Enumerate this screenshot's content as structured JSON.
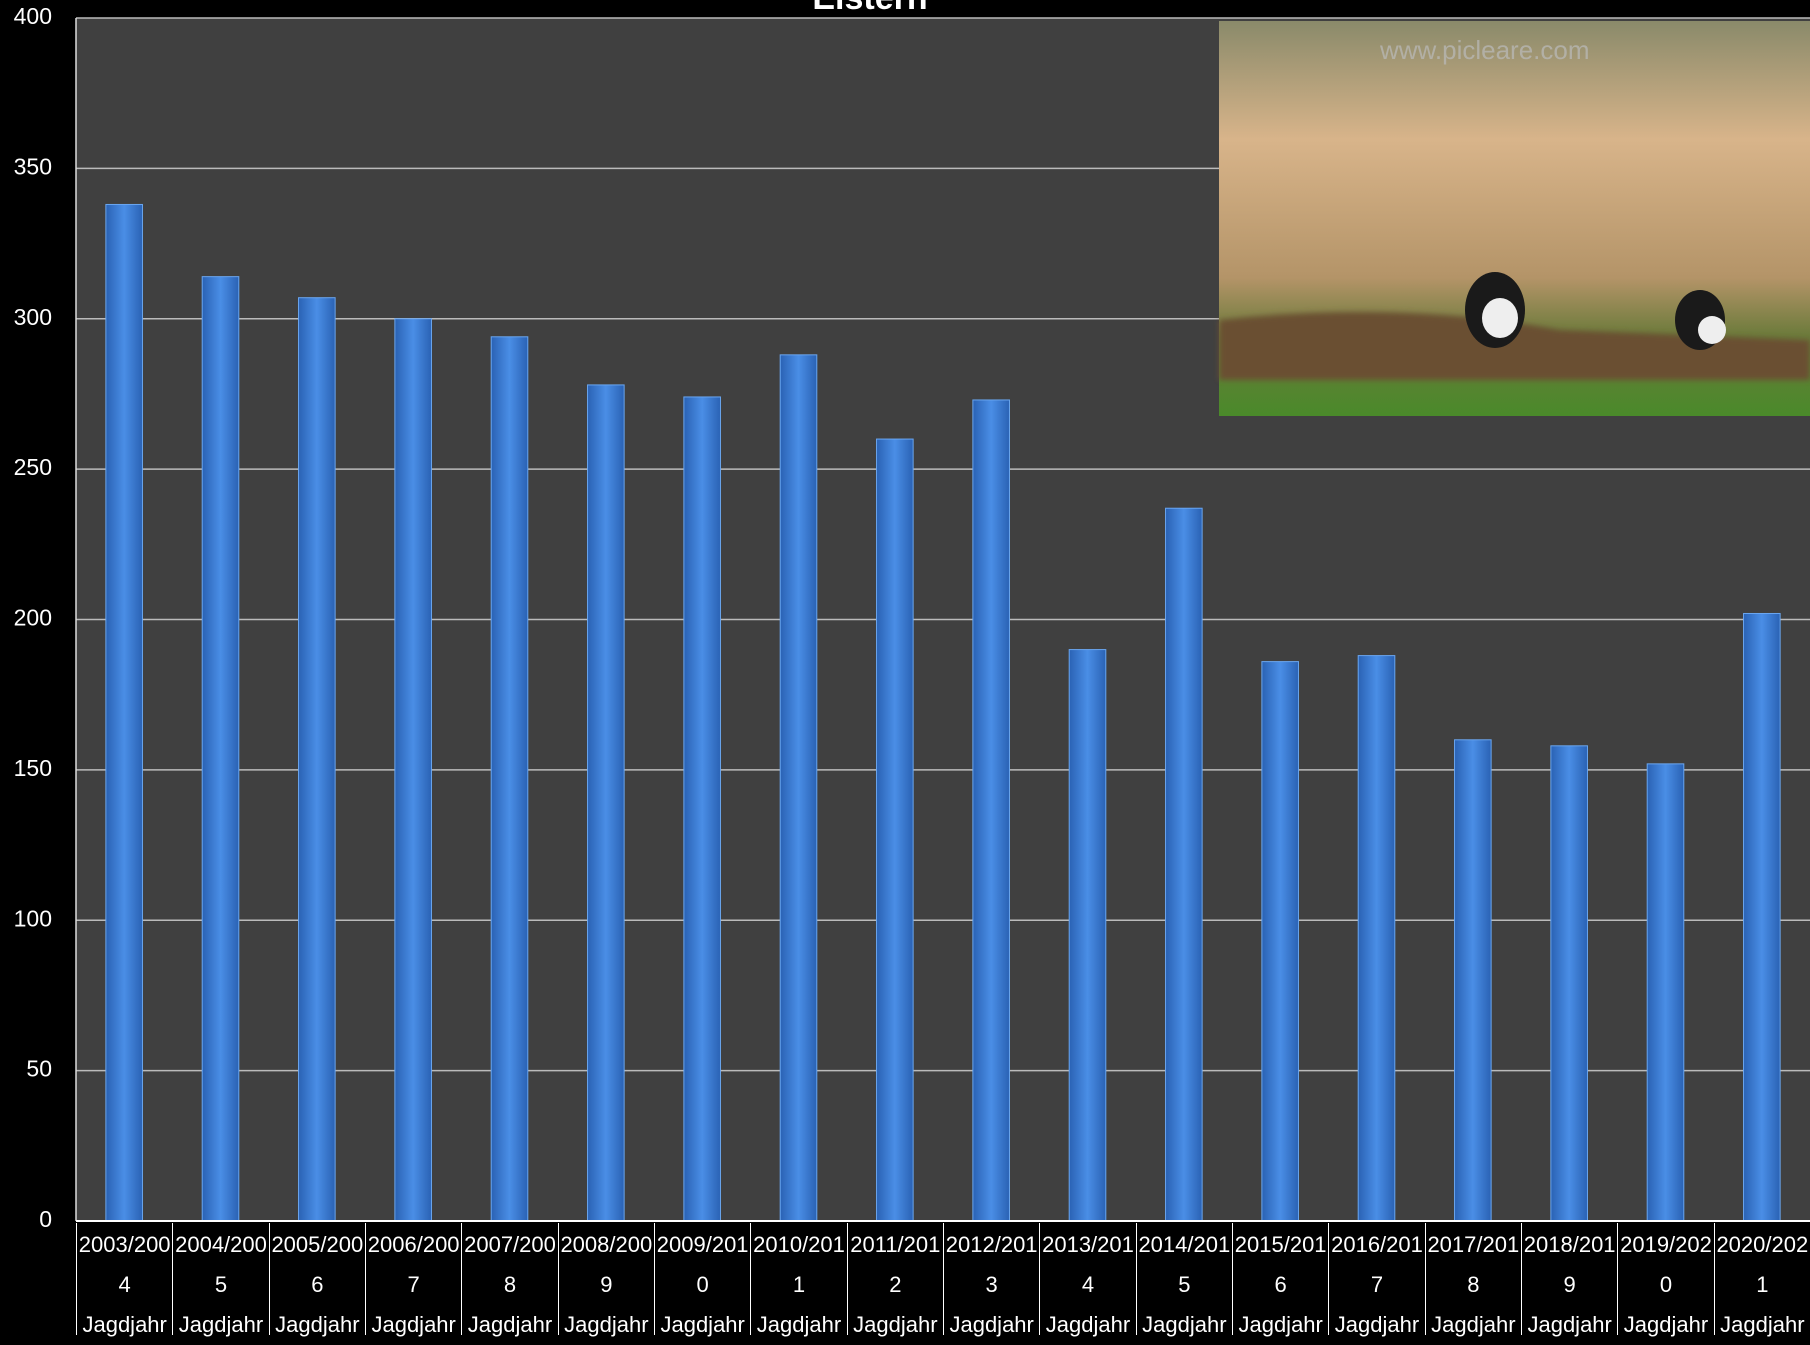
{
  "chart_data": {
    "type": "bar",
    "title": "Elstern",
    "categories": [
      "2003/2004 Jagdjahr",
      "2004/2005 Jagdjahr",
      "2005/2006 Jagdjahr",
      "2006/2007 Jagdjahr",
      "2007/2008 Jagdjahr",
      "2008/2009 Jagdjahr",
      "2009/2010 Jagdjahr",
      "2010/2011 Jagdjahr",
      "2011/2012 Jagdjahr",
      "2012/2013 Jagdjahr",
      "2013/2014 Jagdjahr",
      "2014/2015 Jagdjahr",
      "2015/2016 Jagdjahr",
      "2016/2017 Jagdjahr",
      "2017/2018 Jagdjahr",
      "2018/2019 Jagdjahr",
      "2019/2020 Jagdjahr",
      "2020/2021 Jagdjahr"
    ],
    "values": [
      338,
      314,
      307,
      300,
      294,
      278,
      274,
      288,
      260,
      273,
      190,
      237,
      186,
      188,
      160,
      158,
      152,
      202
    ],
    "color": "#3d7fd6",
    "ylim": [
      0,
      400
    ],
    "yticks": [
      0,
      50,
      100,
      150,
      200,
      250,
      300,
      350,
      400
    ],
    "grid": true,
    "watermark": "www.picleare.com"
  }
}
